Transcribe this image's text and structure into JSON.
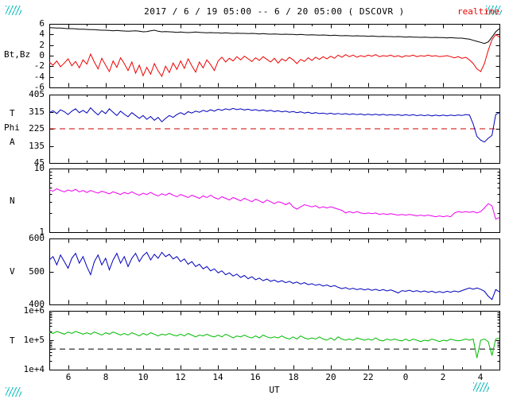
{
  "chart_data": {
    "type": "line",
    "title": "2017 / 6 / 19 05:00 -- 6 / 20 05:00 ( DSCOVR )",
    "status_label": "realtime",
    "xlabel": "UT",
    "corner_mark_color": "#00bbbb",
    "x_axis": {
      "range_hours": [
        5,
        29
      ],
      "start": 5,
      "step": 0.2,
      "count": 121,
      "tick_values": [
        6,
        8,
        10,
        12,
        14,
        16,
        18,
        20,
        22,
        24,
        26,
        28
      ],
      "tick_labels": [
        "6",
        "8",
        "10",
        "12",
        "14",
        "16",
        "18",
        "20",
        "22",
        "0",
        "2",
        "4"
      ]
    },
    "panels": [
      {
        "id": "magnetic-field",
        "ylabel": "Bt,Bz",
        "yticks": [
          6,
          4,
          2,
          0,
          -2,
          -4,
          -6
        ],
        "ylim": [
          -6,
          6
        ],
        "scale": "linear",
        "series": [
          {
            "name": "Bt",
            "color": "#000000",
            "values": [
              5.3,
              5.25,
              5.2,
              5.2,
              5.15,
              5.1,
              5.1,
              5.05,
              5.0,
              5.0,
              4.95,
              4.9,
              4.9,
              4.85,
              4.8,
              4.8,
              4.75,
              4.7,
              4.75,
              4.7,
              4.65,
              4.6,
              4.65,
              4.7,
              4.6,
              4.5,
              4.55,
              4.7,
              4.8,
              4.6,
              4.5,
              4.55,
              4.5,
              4.45,
              4.4,
              4.45,
              4.4,
              4.35,
              4.4,
              4.45,
              4.4,
              4.35,
              4.3,
              4.35,
              4.3,
              4.3,
              4.25,
              4.3,
              4.25,
              4.2,
              4.25,
              4.2,
              4.2,
              4.15,
              4.2,
              4.15,
              4.1,
              4.15,
              4.1,
              4.05,
              4.1,
              4.05,
              4.0,
              4.05,
              4.0,
              4.0,
              3.95,
              4.0,
              3.95,
              3.9,
              3.95,
              3.9,
              3.85,
              3.9,
              3.85,
              3.8,
              3.85,
              3.8,
              3.75,
              3.8,
              3.75,
              3.7,
              3.75,
              3.7,
              3.7,
              3.65,
              3.7,
              3.65,
              3.6,
              3.65,
              3.6,
              3.6,
              3.55,
              3.6,
              3.55,
              3.5,
              3.55,
              3.5,
              3.5,
              3.45,
              3.5,
              3.45,
              3.4,
              3.45,
              3.4,
              3.4,
              3.35,
              3.4,
              3.35,
              3.3,
              3.3,
              3.2,
              3.1,
              2.9,
              2.7,
              2.5,
              2.3,
              2.6,
              3.5,
              4.5,
              5.1
            ]
          },
          {
            "name": "Bz",
            "color": "#ee0000",
            "values": [
              -1.2,
              -1.8,
              -1.0,
              -2.1,
              -1.4,
              -0.6,
              -1.9,
              -1.1,
              -2.3,
              -0.8,
              -1.6,
              0.3,
              -1.2,
              -2.5,
              -0.5,
              -1.8,
              -3.0,
              -1.0,
              -2.2,
              -0.4,
              -1.5,
              -2.8,
              -1.2,
              -3.3,
              -1.8,
              -3.8,
              -2.2,
              -3.5,
              -1.5,
              -2.9,
              -3.9,
              -2.0,
              -3.2,
              -1.4,
              -2.6,
              -1.0,
              -2.4,
              -0.6,
              -1.9,
              -3.1,
              -1.2,
              -2.3,
              -0.8,
              -1.7,
              -2.8,
              -1.0,
              -0.3,
              -1.2,
              -0.5,
              -1.0,
              -0.2,
              -0.8,
              -0.1,
              -0.6,
              -1.1,
              -0.4,
              -0.9,
              -0.2,
              -0.7,
              -1.2,
              -0.5,
              -1.4,
              -0.6,
              -1.0,
              -0.3,
              -0.8,
              -1.5,
              -0.7,
              -1.1,
              -0.4,
              -0.9,
              -0.3,
              -0.7,
              -0.2,
              -0.6,
              -0.1,
              -0.5,
              0.1,
              -0.3,
              0.2,
              -0.2,
              0.1,
              -0.3,
              0.0,
              -0.2,
              0.1,
              -0.1,
              0.2,
              -0.2,
              0.0,
              -0.1,
              0.1,
              -0.2,
              0.0,
              -0.3,
              0.0,
              -0.1,
              0.1,
              -0.2,
              0.0,
              -0.1,
              0.1,
              -0.1,
              0.0,
              -0.2,
              -0.1,
              0.0,
              -0.2,
              -0.4,
              -0.2,
              -0.5,
              -0.3,
              -0.8,
              -1.5,
              -2.5,
              -3.0,
              -1.5,
              1.0,
              3.0,
              4.0,
              3.5
            ]
          }
        ]
      },
      {
        "id": "phi-angle",
        "ylabel_lines": [
          "T",
          "Phi",
          "A"
        ],
        "yticks": [
          405,
          315,
          225,
          135,
          45
        ],
        "ylim": [
          45,
          405
        ],
        "scale": "linear",
        "refline": {
          "value": 225,
          "color": "#cc0000"
        },
        "series": [
          {
            "name": "Phi",
            "color": "#0000bb",
            "values": [
              310,
              320,
              305,
              325,
              315,
              300,
              318,
              330,
              310,
              322,
              308,
              335,
              315,
              298,
              320,
              305,
              330,
              312,
              295,
              318,
              302,
              288,
              310,
              295,
              280,
              295,
              275,
              290,
              270,
              285,
              262,
              280,
              295,
              285,
              300,
              310,
              300,
              315,
              308,
              318,
              312,
              322,
              315,
              325,
              318,
              328,
              322,
              330,
              325,
              332,
              326,
              330,
              324,
              328,
              322,
              326,
              320,
              324,
              318,
              322,
              316,
              320,
              314,
              318,
              312,
              316,
              310,
              314,
              308,
              312,
              306,
              310,
              305,
              308,
              303,
              307,
              302,
              306,
              301,
              305,
              300,
              304,
              299,
              303,
              298,
              302,
              298,
              302,
              297,
              301,
              296,
              300,
              296,
              300,
              295,
              299,
              295,
              299,
              294,
              298,
              294,
              298,
              293,
              297,
              293,
              297,
              293,
              297,
              294,
              298,
              295,
              300,
              298,
              250,
              185,
              165,
              155,
              175,
              190,
              300,
              310
            ]
          }
        ]
      },
      {
        "id": "density",
        "ylabel": "N",
        "yticks": [
          10,
          1
        ],
        "ylim": [
          1,
          10
        ],
        "scale": "log",
        "series": [
          {
            "name": "N",
            "color": "#ee00ee",
            "values": [
              4.6,
              4.4,
              4.8,
              4.5,
              4.3,
              4.6,
              4.4,
              4.7,
              4.3,
              4.5,
              4.2,
              4.5,
              4.3,
              4.1,
              4.4,
              4.2,
              4.0,
              4.3,
              4.1,
              3.9,
              4.2,
              4.0,
              4.3,
              4.0,
              3.8,
              4.1,
              3.9,
              4.2,
              3.9,
              3.7,
              4.0,
              3.8,
              4.1,
              3.8,
              3.6,
              3.9,
              3.7,
              3.5,
              3.8,
              3.6,
              3.4,
              3.7,
              3.5,
              3.8,
              3.5,
              3.3,
              3.6,
              3.4,
              3.2,
              3.5,
              3.3,
              3.1,
              3.4,
              3.2,
              3.0,
              3.3,
              3.1,
              2.9,
              3.2,
              3.0,
              2.8,
              3.0,
              2.9,
              2.7,
              2.9,
              2.5,
              2.3,
              2.5,
              2.7,
              2.6,
              2.5,
              2.6,
              2.4,
              2.5,
              2.4,
              2.5,
              2.4,
              2.3,
              2.2,
              2.0,
              2.1,
              2.0,
              2.1,
              2.0,
              1.95,
              2.0,
              1.95,
              2.0,
              1.9,
              1.95,
              1.9,
              1.95,
              1.9,
              1.85,
              1.9,
              1.85,
              1.9,
              1.85,
              1.8,
              1.85,
              1.8,
              1.85,
              1.8,
              1.75,
              1.8,
              1.75,
              1.8,
              1.75,
              2.0,
              2.1,
              2.05,
              2.1,
              2.05,
              2.1,
              2.0,
              2.1,
              2.4,
              2.8,
              2.6,
              1.6,
              1.7
            ]
          }
        ]
      },
      {
        "id": "velocity",
        "ylabel": "V",
        "yticks": [
          600,
          500,
          400
        ],
        "ylim": [
          400,
          600
        ],
        "scale": "linear",
        "series": [
          {
            "name": "V",
            "color": "#0000bb",
            "values": [
              535,
              545,
              520,
              550,
              530,
              510,
              540,
              555,
              525,
              545,
              515,
              490,
              530,
              550,
              520,
              540,
              505,
              535,
              555,
              525,
              545,
              515,
              540,
              555,
              530,
              548,
              558,
              535,
              552,
              540,
              558,
              545,
              552,
              538,
              545,
              530,
              538,
              522,
              530,
              515,
              522,
              508,
              515,
              502,
              508,
              496,
              502,
              490,
              496,
              486,
              492,
              482,
              488,
              478,
              484,
              475,
              480,
              472,
              477,
              470,
              474,
              468,
              472,
              466,
              470,
              464,
              468,
              462,
              466,
              460,
              463,
              458,
              461,
              456,
              459,
              454,
              457,
              452,
              448,
              451,
              446,
              449,
              445,
              448,
              444,
              447,
              443,
              446,
              442,
              445,
              441,
              444,
              440,
              435,
              442,
              440,
              443,
              439,
              442,
              438,
              441,
              437,
              440,
              436,
              439,
              436,
              440,
              437,
              441,
              438,
              442,
              446,
              450,
              446,
              450,
              446,
              440,
              425,
              415,
              445,
              438
            ]
          }
        ]
      },
      {
        "id": "temperature",
        "ylabel": "T",
        "yticks": [
          1000000,
          100000,
          10000
        ],
        "ytick_labels": [
          "1e+6",
          "1e+5",
          "1e+4"
        ],
        "ylim": [
          10000,
          1000000
        ],
        "scale": "log",
        "refline": {
          "value": 50000,
          "color": "#000000"
        },
        "series": [
          {
            "name": "T",
            "color": "#00bb00",
            "values": [
              190000.0,
              170000.0,
              200000.0,
              180000.0,
              160000.0,
              190000.0,
              170000.0,
              200000.0,
              180000.0,
              160000.0,
              180000.0,
              160000.0,
              190000.0,
              170000.0,
              150000.0,
              180000.0,
              160000.0,
              190000.0,
              170000.0,
              150000.0,
              170000.0,
              150000.0,
              180000.0,
              160000.0,
              140000.0,
              170000.0,
              150000.0,
              180000.0,
              160000.0,
              140000.0,
              160000.0,
              150000.0,
              170000.0,
              150000.0,
              140000.0,
              160000.0,
              140000.0,
              170000.0,
              150000.0,
              130000.0,
              150000.0,
              140000.0,
              160000.0,
              140000.0,
              130000.0,
              150000.0,
              130000.0,
              160000.0,
              140000.0,
              120000.0,
              140000.0,
              130000.0,
              150000.0,
              130000.0,
              120000.0,
              140000.0,
              120000.0,
              150000.0,
              130000.0,
              120000.0,
              130000.0,
              120000.0,
              140000.0,
              120000.0,
              110000.0,
              130000.0,
              110000.0,
              140000.0,
              120000.0,
              110000.0,
              120000.0,
              110000.0,
              130000.0,
              110000.0,
              100000.0,
              120000.0,
              100000.0,
              130000.0,
              110000.0,
              100000.0,
              110000.0,
              100000.0,
              120000.0,
              110000.0,
              100000.0,
              110000.0,
              100000.0,
              120000.0,
              100000.0,
              95000.0,
              110000.0,
              100000.0,
              110000.0,
              100000.0,
              95000.0,
              110000.0,
              95000.0,
              110000.0,
              100000.0,
              90000.0,
              100000.0,
              95000.0,
              110000.0,
              100000.0,
              90000.0,
              100000.0,
              95000.0,
              110000.0,
              100000.0,
              95000.0,
              100000.0,
              110000.0,
              100000.0,
              110000.0,
              25000.0,
              100000.0,
              110000.0,
              90000.0,
              30000.0,
              110000.0,
              120000.0
            ]
          }
        ]
      }
    ]
  }
}
